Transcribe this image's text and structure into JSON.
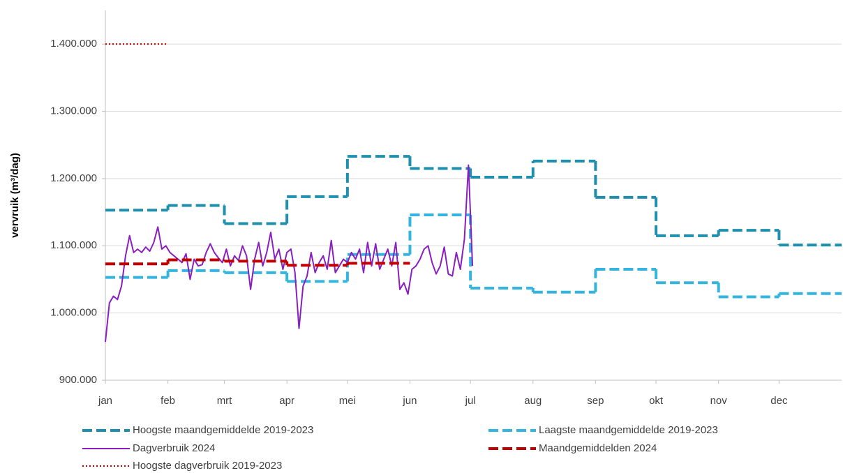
{
  "chart_data": {
    "type": "line",
    "ylabel": "vervruik (m³/dag)",
    "xlim": [
      0,
      365
    ],
    "xticks": [
      {
        "value": 0,
        "label": "jan"
      },
      {
        "value": 31,
        "label": "feb"
      },
      {
        "value": 59,
        "label": "mrt"
      },
      {
        "value": 90,
        "label": "apr"
      },
      {
        "value": 120,
        "label": "mei"
      },
      {
        "value": 151,
        "label": "jun"
      },
      {
        "value": 181,
        "label": "jul"
      },
      {
        "value": 212,
        "label": "aug"
      },
      {
        "value": 243,
        "label": "sep"
      },
      {
        "value": 273,
        "label": "okt"
      },
      {
        "value": 304,
        "label": "nov"
      },
      {
        "value": 334,
        "label": "dec"
      }
    ],
    "ylim": [
      900000,
      1450000
    ],
    "yticks": [
      {
        "value": 900000,
        "label": "900.000"
      },
      {
        "value": 1000000,
        "label": "1.000.000"
      },
      {
        "value": 1100000,
        "label": "1.100.000"
      },
      {
        "value": 1200000,
        "label": "1.200.000"
      },
      {
        "value": 1300000,
        "label": "1.300.000"
      },
      {
        "value": 1400000,
        "label": "1.400.000"
      }
    ],
    "grid": true,
    "legend": "bottom",
    "series": [
      {
        "name": "Hoogste maandgemiddelde 2019-2023",
        "color": "#1f8fae",
        "style": "dashed",
        "step": true,
        "x": [
          0,
          31,
          59,
          90,
          120,
          151,
          181,
          212,
          243,
          273,
          304,
          334
        ],
        "values": [
          1153000,
          1160000,
          1133000,
          1173000,
          1233000,
          1215000,
          1202000,
          1226000,
          1172000,
          1115000,
          1123000,
          1101000
        ]
      },
      {
        "name": "Laagste maandgemiddelde 2019-2023",
        "color": "#33b5e0",
        "style": "dashed",
        "step": true,
        "x": [
          0,
          31,
          59,
          90,
          120,
          151,
          181,
          212,
          243,
          273,
          304,
          334
        ],
        "values": [
          1053000,
          1063000,
          1060000,
          1047000,
          1087000,
          1146000,
          1037000,
          1031000,
          1065000,
          1045000,
          1024000,
          1029000
        ]
      },
      {
        "name": "Dagverbruik 2024",
        "color": "#8a1fc0",
        "style": "solid",
        "step": false,
        "x": [
          0,
          2,
          4,
          6,
          8,
          10,
          12,
          14,
          16,
          18,
          20,
          22,
          24,
          26,
          28,
          30,
          32,
          34,
          36,
          38,
          40,
          42,
          44,
          46,
          48,
          50,
          52,
          54,
          56,
          58,
          60,
          62,
          64,
          66,
          68,
          70,
          72,
          74,
          76,
          78,
          80,
          82,
          84,
          86,
          88,
          90,
          92,
          94,
          96,
          98,
          100,
          102,
          104,
          106,
          108,
          110,
          112,
          114,
          116,
          118,
          120,
          122,
          124,
          126,
          128,
          130,
          132,
          134,
          136,
          138,
          140,
          142,
          144,
          146,
          148,
          150,
          152,
          154,
          156,
          158,
          160,
          162,
          164,
          166,
          168,
          170,
          172,
          174,
          176,
          178,
          180,
          182
        ],
        "values": [
          957000,
          1015000,
          1025000,
          1020000,
          1040000,
          1085000,
          1115000,
          1090000,
          1095000,
          1090000,
          1098000,
          1092000,
          1105000,
          1128000,
          1095000,
          1100000,
          1090000,
          1085000,
          1080000,
          1075000,
          1088000,
          1050000,
          1080000,
          1070000,
          1072000,
          1090000,
          1103000,
          1090000,
          1082000,
          1075000,
          1095000,
          1070000,
          1085000,
          1078000,
          1100000,
          1085000,
          1035000,
          1080000,
          1105000,
          1070000,
          1090000,
          1120000,
          1080000,
          1095000,
          1065000,
          1090000,
          1095000,
          1060000,
          977000,
          1040000,
          1055000,
          1090000,
          1060000,
          1075000,
          1085000,
          1065000,
          1108000,
          1060000,
          1070000,
          1080000,
          1075000,
          1090000,
          1080000,
          1095000,
          1060000,
          1105000,
          1070000,
          1103000,
          1065000,
          1080000,
          1095000,
          1070000,
          1105000,
          1035000,
          1045000,
          1028000,
          1065000,
          1070000,
          1080000,
          1095000,
          1100000,
          1075000,
          1058000,
          1070000,
          1098000,
          1058000,
          1055000,
          1090000,
          1065000,
          1110000,
          1220000,
          1070000
        ]
      },
      {
        "name": "Maandgemiddelden 2024",
        "color": "#c00000",
        "style": "dashed",
        "step": true,
        "x": [
          0,
          31,
          59,
          90,
          120
        ],
        "values": [
          1073000,
          1079000,
          1077000,
          1071000,
          1074000
        ]
      },
      {
        "name": "Hoogste dagverbruik 2019-2023",
        "color": "#c00000",
        "style": "dotted",
        "step": true,
        "x": [
          0
        ],
        "values": [
          1400000
        ]
      }
    ]
  }
}
